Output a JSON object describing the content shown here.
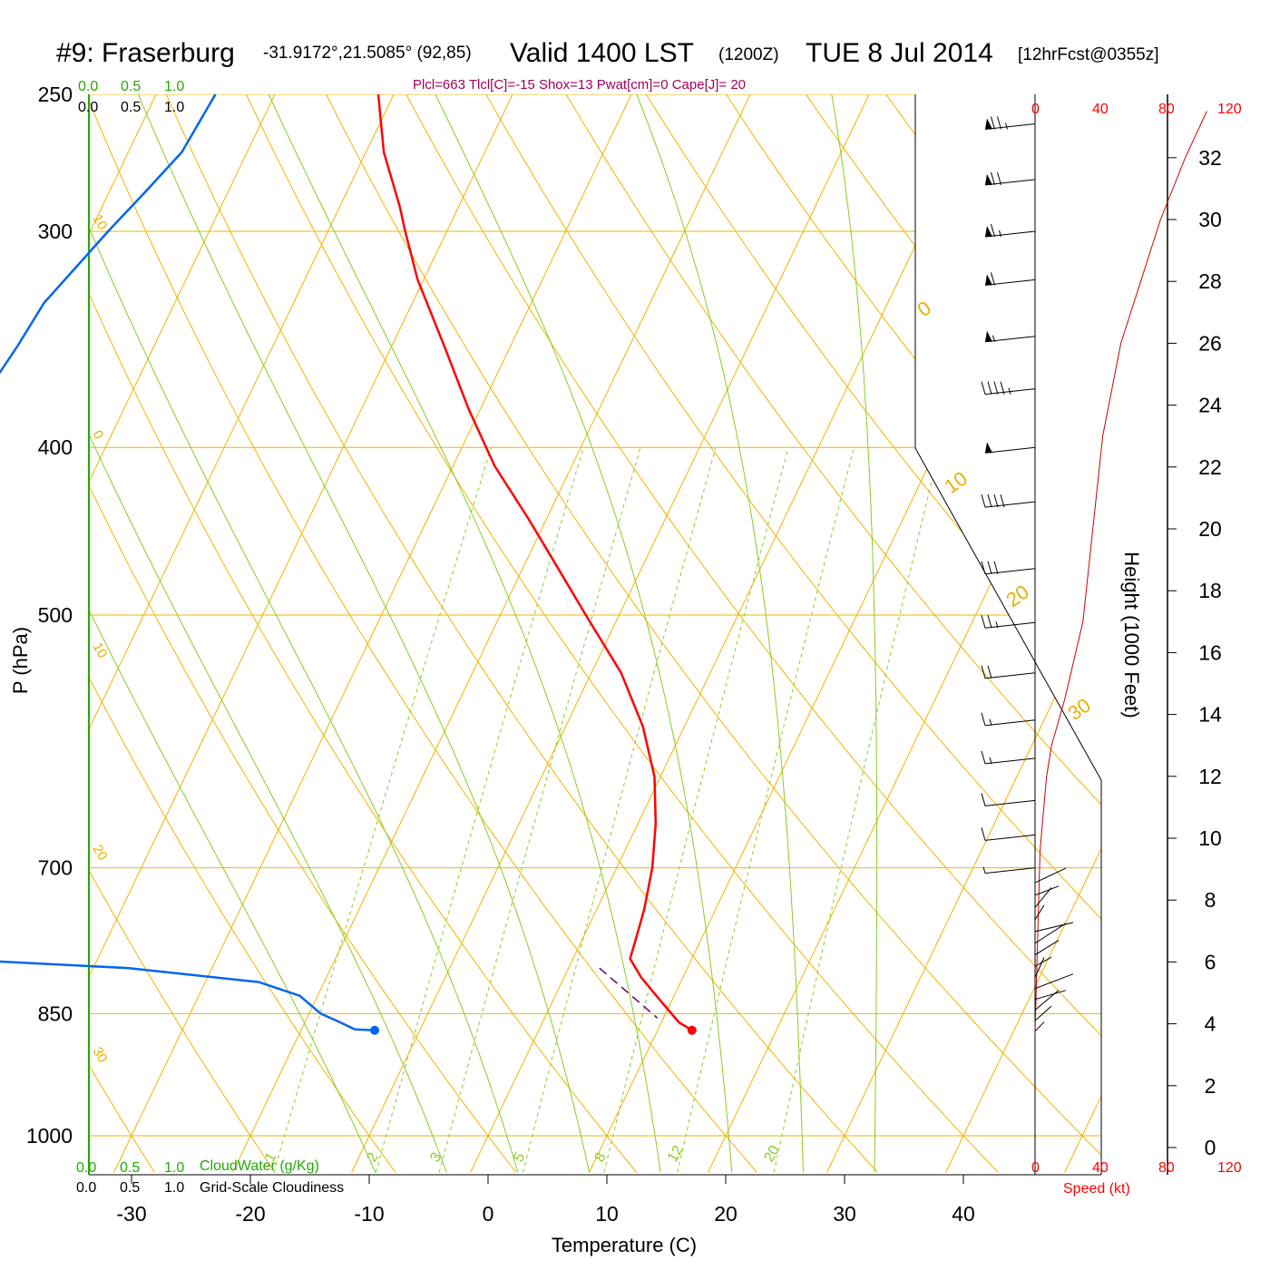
{
  "title": {
    "station": "#9: Fraserburg",
    "coords": "-31.9172°,21.5085° (92,85)",
    "valid": "Valid 1400 LST",
    "zulu": "(1200Z)",
    "date": "TUE 8 Jul 2014",
    "forecast": "[12hrFcst@0355z]"
  },
  "params_line": "Plcl=663 Tlcl[C]=-15 Shox=13 Pwat[cm]=0 Cape[J]= 20",
  "cloud_scale": {
    "green_ticks": [
      "0.0",
      "0.5",
      "1.0"
    ],
    "black_ticks": [
      "0.0",
      "0.5",
      "1.0"
    ],
    "cloudwater_label": "CloudWater (g/Kg)",
    "cloudiness_label": "Grid-Scale Cloudiness"
  },
  "wind_speed_axis": {
    "ticks": [
      "0",
      "40",
      "80",
      "120"
    ],
    "label": "Speed (kt)"
  },
  "colors": {
    "temperature": "#ff0000",
    "dewpoint": "#0066ee",
    "isotherm": "#f0b400",
    "moist_adiabat": "#88cc22",
    "mixing_ratio": "#88cc22",
    "parcel": "#660066",
    "wind_speed": "#cc0000"
  },
  "chart_data": {
    "type": "skew-t",
    "x_axis": {
      "label": "Temperature (C)",
      "ticks": [
        -30,
        -20,
        -10,
        0,
        10,
        20,
        30,
        40
      ],
      "range": [
        -34,
        46
      ]
    },
    "y_axis": {
      "label": "P (hPa)",
      "ticks": [
        250,
        300,
        400,
        500,
        700,
        850,
        1000
      ],
      "range": [
        1000,
        250
      ],
      "scale": "log"
    },
    "height_axis": {
      "label": "Height (1000 Feet)",
      "ticks": [
        0,
        2,
        4,
        6,
        8,
        10,
        12,
        14,
        16,
        18,
        20,
        22,
        24,
        26,
        28,
        30,
        32
      ]
    },
    "isotherm_labels": [
      "10",
      "0",
      "10",
      "20",
      "30",
      "0",
      "10",
      "20",
      "30"
    ],
    "mixing_ratio_labels": [
      "1",
      "2",
      "3",
      "5",
      "8",
      "12",
      "20"
    ],
    "temperature_profile": [
      {
        "p": 250,
        "t": -51.3
      },
      {
        "p": 270,
        "t": -48.5
      },
      {
        "p": 290,
        "t": -45.0
      },
      {
        "p": 300,
        "t": -43.5
      },
      {
        "p": 320,
        "t": -40.5
      },
      {
        "p": 350,
        "t": -35.5
      },
      {
        "p": 380,
        "t": -31.0
      },
      {
        "p": 410,
        "t": -26.5
      },
      {
        "p": 440,
        "t": -21.5
      },
      {
        "p": 470,
        "t": -17.0
      },
      {
        "p": 500,
        "t": -12.8
      },
      {
        "p": 540,
        "t": -7.5
      },
      {
        "p": 580,
        "t": -3.5
      },
      {
        "p": 620,
        "t": -0.5
      },
      {
        "p": 660,
        "t": 1.5
      },
      {
        "p": 700,
        "t": 3.0
      },
      {
        "p": 740,
        "t": 4.0
      },
      {
        "p": 770,
        "t": 4.5
      },
      {
        "p": 790,
        "t": 4.8
      },
      {
        "p": 810,
        "t": 6.5
      },
      {
        "p": 840,
        "t": 9.5
      },
      {
        "p": 860,
        "t": 11.5
      },
      {
        "p": 869,
        "t": 12.9
      }
    ],
    "dewpoint_profile": [
      {
        "p": 250,
        "t": -65.0
      },
      {
        "p": 270,
        "t": -65.5
      },
      {
        "p": 285,
        "t": -67.0
      },
      {
        "p": 300,
        "t": -68.5
      },
      {
        "p": 330,
        "t": -71.0
      },
      {
        "p": 350,
        "t": -71.5
      },
      {
        "p": 380,
        "t": -72.5
      },
      {
        "p": 410,
        "t": -76.0
      },
      {
        "p": 450,
        "t": -80.5
      },
      {
        "p": 490,
        "t": -82.5
      },
      {
        "p": 520,
        "t": -84.0
      },
      {
        "p": 640,
        "t": -87.0
      },
      {
        "p": 660,
        "t": -87.0
      },
      {
        "p": 690,
        "t": -86.0
      },
      {
        "p": 720,
        "t": -75.0
      },
      {
        "p": 760,
        "t": -65.0
      },
      {
        "p": 790,
        "t": -53.0
      },
      {
        "p": 800,
        "t": -37.0
      },
      {
        "p": 815,
        "t": -25.5
      },
      {
        "p": 830,
        "t": -21.5
      },
      {
        "p": 850,
        "t": -19.0
      },
      {
        "p": 860,
        "t": -17.0
      },
      {
        "p": 868,
        "t": -15.5
      },
      {
        "p": 869,
        "t": -13.8
      }
    ],
    "parcel_segment": [
      {
        "p": 800,
        "t": 2.6
      },
      {
        "p": 825,
        "t": 5.8
      },
      {
        "p": 855,
        "t": 9.5
      }
    ],
    "surface_temperature_point": {
      "p": 869,
      "t": 12.9
    },
    "surface_dewpoint_point": {
      "p": 869,
      "t": -13.8
    },
    "wind_speed_profile": [
      {
        "h": 3.7,
        "kt": 0
      },
      {
        "h": 9.6,
        "kt": 3
      },
      {
        "h": 10.8,
        "kt": 5
      },
      {
        "h": 12.0,
        "kt": 7
      },
      {
        "h": 13.0,
        "kt": 10
      },
      {
        "h": 14.5,
        "kt": 18
      },
      {
        "h": 17.0,
        "kt": 29
      },
      {
        "h": 20.0,
        "kt": 35
      },
      {
        "h": 23.0,
        "kt": 41
      },
      {
        "h": 26.0,
        "kt": 52
      },
      {
        "h": 28.0,
        "kt": 64
      },
      {
        "h": 30.0,
        "kt": 76
      },
      {
        "h": 32.0,
        "kt": 91
      },
      {
        "h": 33.5,
        "kt": 104
      }
    ],
    "wind_barbs": [
      {
        "p": 260,
        "kt": 75
      },
      {
        "p": 280,
        "kt": 70
      },
      {
        "p": 300,
        "kt": 65
      },
      {
        "p": 320,
        "kt": 60
      },
      {
        "p": 345,
        "kt": 55
      },
      {
        "p": 370,
        "kt": 45
      },
      {
        "p": 400,
        "kt": 50
      },
      {
        "p": 430,
        "kt": 40
      },
      {
        "p": 470,
        "kt": 30
      },
      {
        "p": 505,
        "kt": 25
      },
      {
        "p": 540,
        "kt": 20
      },
      {
        "p": 575,
        "kt": 15
      },
      {
        "p": 605,
        "kt": 15
      },
      {
        "p": 640,
        "kt": 10
      },
      {
        "p": 670,
        "kt": 10
      },
      {
        "p": 700,
        "kt": 5
      }
    ]
  }
}
